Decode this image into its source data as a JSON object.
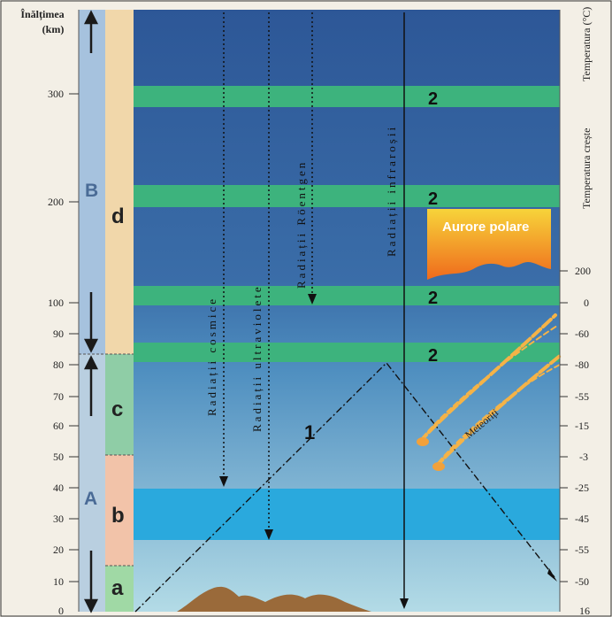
{
  "axis_title_line1": "Înălțimea",
  "axis_title_line2": "(km)",
  "height_ticks": [
    "300",
    "200",
    "100",
    "90",
    "80",
    "70",
    "60",
    "50",
    "40",
    "30",
    "20",
    "10",
    "0"
  ],
  "temp_axis_title": "Temperatura (°C)",
  "temp_rises_label": "Temperatura crește",
  "temp_ticks": [
    "200",
    "0",
    "-60",
    "-80",
    "-55",
    "-15",
    "-3",
    "-25",
    "-45",
    "-55",
    "-50",
    "16"
  ],
  "region_labels": {
    "A": "A",
    "B": "B"
  },
  "layer_labels": {
    "a": "a",
    "b": "b",
    "c": "c",
    "d": "d"
  },
  "radiation_labels": {
    "cosmic": "Radiații cosmice",
    "uv": "Radiații ultraviolete",
    "xray": "Radiații Röentgen",
    "ir": "Radiații infraroșii"
  },
  "band_number": "2",
  "curve_number": "1",
  "aurora_label": "Aurore polare",
  "meteor_label": "Meteoriți",
  "colors": {
    "sky_top": "#2e5a97",
    "sky_bottom": "#a9d3e2",
    "green_band": "#3fb37a",
    "ozone_band": "#28a6d8",
    "col_blue": "#a7c2dc",
    "col_d": "#f0d6a9",
    "col_c": "#8ccca4",
    "col_b": "#f3c2a8",
    "col_a": "#9fd8a4"
  }
}
